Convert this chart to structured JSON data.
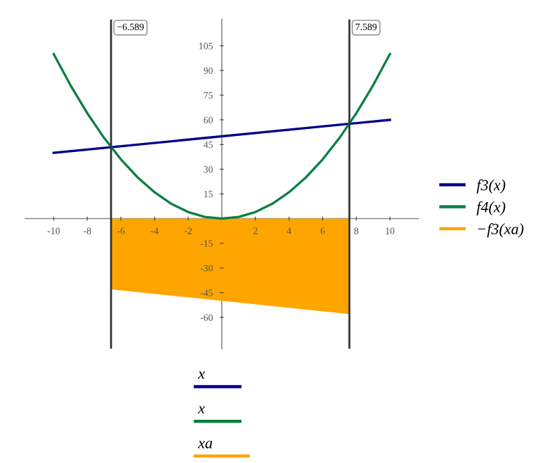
{
  "chart_data": {
    "type": "line",
    "xlim": [
      -11.7,
      11.7
    ],
    "ylim": [
      -79,
      121
    ],
    "xticks": [
      -10,
      -8,
      -6,
      -4,
      -2,
      2,
      4,
      6,
      8,
      10
    ],
    "yticks": [
      -60,
      -45,
      -30,
      -15,
      15,
      30,
      45,
      60,
      75,
      90,
      105
    ],
    "series": [
      {
        "name": "f3(x)",
        "color": "#00008b",
        "x": [
          -10,
          10
        ],
        "values": [
          40,
          60
        ]
      },
      {
        "name": "f4(x)",
        "color": "#0b8043",
        "x": [
          -10,
          -9,
          -8,
          -7,
          -6,
          -5,
          -4,
          -3,
          -2,
          -1,
          0,
          1,
          2,
          3,
          4,
          5,
          6,
          7,
          8,
          9,
          10
        ],
        "values": [
          100,
          81,
          64,
          49,
          36,
          25,
          16,
          9,
          4,
          1,
          0,
          1,
          4,
          9,
          16,
          25,
          36,
          49,
          64,
          81,
          100
        ]
      },
      {
        "name": "−f3(xa)",
        "color": "#ffa500",
        "type": "area",
        "x": [
          -6.589,
          7.589
        ],
        "values": [
          -43,
          -58
        ]
      }
    ],
    "ref_lines": [
      {
        "axis": "x",
        "value": -6.589,
        "label": "−6.589",
        "color": "#333333"
      },
      {
        "axis": "x",
        "value": 7.589,
        "label": "7.589",
        "color": "#333333"
      }
    ],
    "annotations": [
      "x",
      "x",
      "xa"
    ],
    "legend": "right",
    "grid": false
  }
}
